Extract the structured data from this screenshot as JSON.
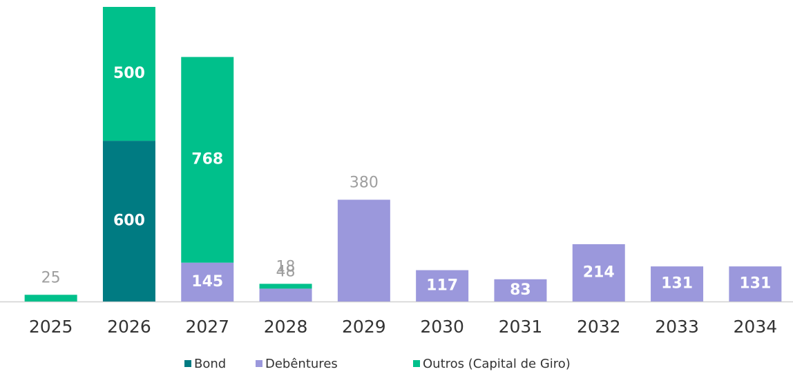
{
  "chart_data": {
    "type": "bar",
    "stacked": true,
    "categories": [
      "2025",
      "2026",
      "2027",
      "2028",
      "2029",
      "2030",
      "2031",
      "2032",
      "2033",
      "2034"
    ],
    "series": [
      {
        "name": "Bond",
        "color": "#007b82",
        "values": [
          null,
          600,
          null,
          null,
          null,
          null,
          null,
          null,
          null,
          null
        ]
      },
      {
        "name": "Debêntures",
        "color": "#9b98dc",
        "values": [
          null,
          null,
          145,
          48,
          380,
          117,
          83,
          214,
          131,
          131
        ]
      },
      {
        "name": "Outros (Capital de Giro)",
        "color": "#00c08b",
        "values": [
          25,
          500,
          768,
          18,
          null,
          null,
          null,
          null,
          null,
          null
        ]
      }
    ]
  }
}
